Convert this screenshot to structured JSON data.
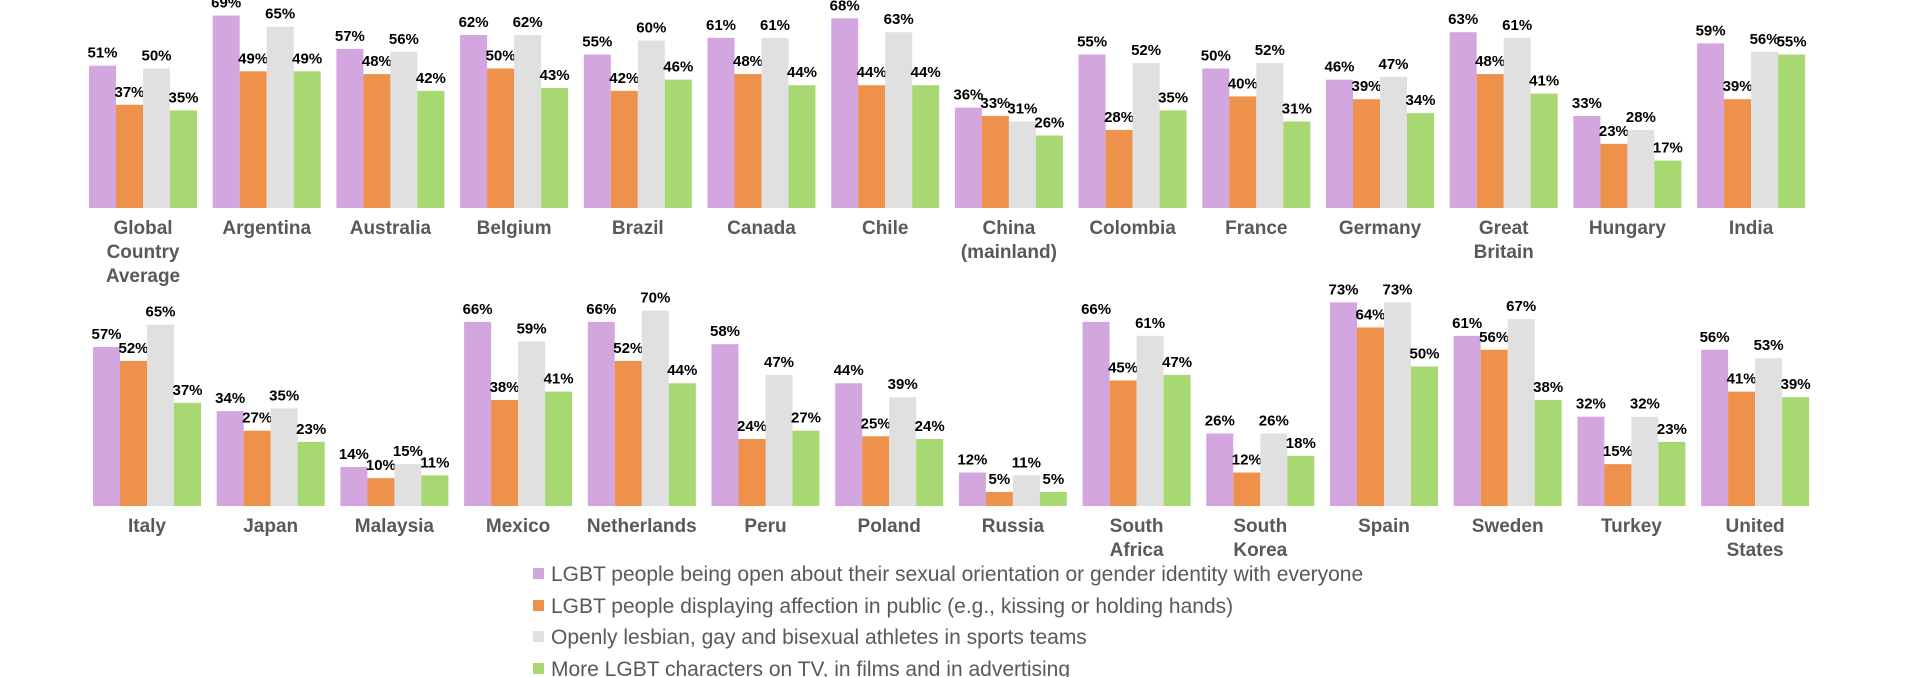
{
  "colors": [
    "#D3A6DF",
    "#EE914A",
    "#E0E0E0",
    "#A8D872"
  ],
  "chart_data": {
    "type": "bar",
    "title": "",
    "xlabel": "",
    "ylabel": "",
    "ylim": [
      0,
      75
    ],
    "grid": false,
    "legend_position": "bottom",
    "series_names": [
      "LGBT people being open about their sexual orientation or gender identity with everyone",
      "LGBT people displaying affection in public (e.g., kissing or holding hands)",
      "Openly lesbian, gay and bisexual athletes in sports teams",
      "More LGBT characters on TV, in films and in advertising"
    ],
    "panels": [
      {
        "categories": [
          "Global\nCountry\nAverage",
          "Argentina",
          "Australia",
          "Belgium",
          "Brazil",
          "Canada",
          "Chile",
          "China\n(mainland)",
          "Colombia",
          "France",
          "Germany",
          "Great\nBritain",
          "Hungary",
          "India"
        ],
        "values": [
          [
            51,
            37,
            50,
            35
          ],
          [
            69,
            49,
            65,
            49
          ],
          [
            57,
            48,
            56,
            42
          ],
          [
            62,
            50,
            62,
            43
          ],
          [
            55,
            42,
            60,
            46
          ],
          [
            61,
            48,
            61,
            44
          ],
          [
            68,
            44,
            63,
            44
          ],
          [
            36,
            33,
            31,
            26
          ],
          [
            55,
            28,
            52,
            35
          ],
          [
            50,
            40,
            52,
            31
          ],
          [
            46,
            39,
            47,
            34
          ],
          [
            63,
            48,
            61,
            41
          ],
          [
            33,
            23,
            28,
            17
          ],
          [
            59,
            39,
            56,
            55
          ]
        ]
      },
      {
        "categories": [
          "Italy",
          "Japan",
          "Malaysia",
          "Mexico",
          "Netherlands",
          "Peru",
          "Poland",
          "Russia",
          "South\nAfrica",
          "South\nKorea",
          "Spain",
          "Sweden",
          "Turkey",
          "United\nStates"
        ],
        "values": [
          [
            57,
            52,
            65,
            37
          ],
          [
            34,
            27,
            35,
            23
          ],
          [
            14,
            10,
            15,
            11
          ],
          [
            66,
            38,
            59,
            41
          ],
          [
            66,
            52,
            70,
            44
          ],
          [
            58,
            24,
            47,
            27
          ],
          [
            44,
            25,
            39,
            24
          ],
          [
            12,
            5,
            11,
            5
          ],
          [
            66,
            45,
            61,
            47
          ],
          [
            26,
            12,
            26,
            18
          ],
          [
            73,
            64,
            73,
            50
          ],
          [
            61,
            56,
            67,
            38
          ],
          [
            32,
            15,
            32,
            23
          ],
          [
            56,
            41,
            53,
            39
          ]
        ]
      }
    ]
  }
}
